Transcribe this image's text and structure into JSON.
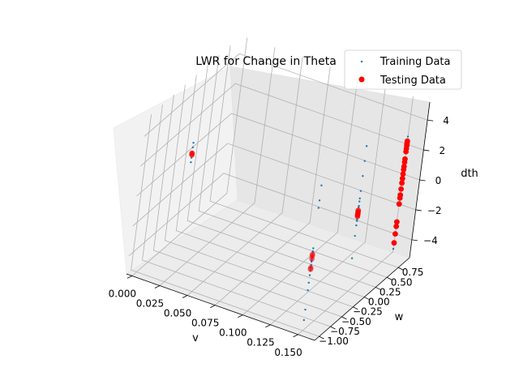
{
  "chart_data": {
    "type": "scatter",
    "projection": "3d",
    "title": "LWR for Change in Theta",
    "xlabel": "v",
    "ylabel": "w",
    "zlabel": "dth",
    "xlim": [
      -0.005,
      0.165
    ],
    "ylim": [
      -1.1,
      1.0
    ],
    "zlim": [
      -5.2,
      5.2
    ],
    "x_ticks": [
      0.0,
      0.025,
      0.05,
      0.075,
      0.1,
      0.125,
      0.15
    ],
    "x_tick_labels": [
      "0.000",
      "0.025",
      "0.050",
      "0.075",
      "0.100",
      "0.125",
      "0.150"
    ],
    "y_ticks": [
      -1.0,
      -0.75,
      -0.5,
      -0.25,
      0.0,
      0.25,
      0.5,
      0.75
    ],
    "y_tick_labels": [
      "−1.00",
      "−0.75",
      "−0.50",
      "−0.25",
      "0.00",
      "0.25",
      "0.50",
      "0.75"
    ],
    "z_ticks": [
      -4,
      -2,
      0,
      2,
      4
    ],
    "z_tick_labels": [
      "−4",
      "−2",
      "0",
      "2",
      "4"
    ],
    "grid": true,
    "legend": {
      "placement": "top-right",
      "entries": [
        {
          "label": "Training Data",
          "color": "#1f77b4",
          "marker": "small-dot"
        },
        {
          "label": "Testing Data",
          "color": "#ff0000",
          "marker": "circle"
        }
      ]
    },
    "series": [
      {
        "name": "Training Data",
        "color": "#1f77b4",
        "points": [
          [
            0.0,
            0.0,
            0.2
          ],
          [
            0.0,
            0.0,
            0.5
          ],
          [
            0.0,
            0.0,
            -0.2
          ],
          [
            0.0,
            0.0,
            0.8
          ],
          [
            0.0,
            0.0,
            -0.5
          ],
          [
            0.15,
            -1.0,
            3.5
          ],
          [
            0.15,
            -1.0,
            3.0
          ],
          [
            0.15,
            -1.0,
            4.5
          ],
          [
            0.15,
            -1.0,
            -4.5
          ],
          [
            0.15,
            -1.0,
            -3.8
          ],
          [
            0.15,
            -1.0,
            -2.0
          ],
          [
            0.15,
            -1.0,
            -1.5
          ],
          [
            0.15,
            -1.0,
            -2.5
          ],
          [
            0.15,
            -1.0,
            -0.5
          ],
          [
            0.15,
            -1.0,
            -0.2
          ],
          [
            0.15,
            -1.0,
            0.0
          ],
          [
            0.15,
            -1.0,
            -0.8
          ],
          [
            0.15,
            -1.0,
            -1.2
          ],
          [
            0.15,
            -1.0,
            0.3
          ],
          [
            0.15,
            -1.0,
            -0.9
          ],
          [
            0.15,
            -1.0,
            -0.4
          ],
          [
            0.15,
            -1.0,
            0.1
          ],
          [
            0.15,
            -1.0,
            -0.6
          ],
          [
            0.15,
            -1.0,
            -1.0
          ],
          [
            0.15,
            -1.0,
            -0.3
          ],
          [
            0.15,
            0.0,
            2.5
          ],
          [
            0.15,
            0.0,
            1.5
          ],
          [
            0.15,
            0.0,
            0.5
          ],
          [
            0.15,
            0.0,
            0.2
          ],
          [
            0.15,
            0.0,
            -0.2
          ],
          [
            0.15,
            0.0,
            -0.5
          ],
          [
            0.15,
            0.0,
            0.0
          ],
          [
            0.15,
            0.0,
            0.8
          ],
          [
            0.15,
            0.0,
            -0.8
          ],
          [
            0.15,
            0.0,
            1.0
          ],
          [
            0.15,
            0.0,
            -1.5
          ],
          [
            0.15,
            0.0,
            -3.0
          ],
          [
            0.15,
            0.0,
            4.5
          ],
          [
            0.15,
            0.0,
            3.5
          ],
          [
            0.15,
            0.0,
            0.4
          ],
          [
            0.15,
            0.0,
            -0.4
          ],
          [
            0.15,
            1.0,
            2.0
          ],
          [
            0.15,
            1.0,
            1.5
          ],
          [
            0.15,
            1.0,
            1.0
          ],
          [
            0.15,
            1.0,
            0.5
          ],
          [
            0.15,
            1.0,
            0.0
          ],
          [
            0.15,
            1.0,
            -0.5
          ],
          [
            0.15,
            1.0,
            -1.0
          ],
          [
            0.15,
            1.0,
            2.5
          ],
          [
            0.15,
            1.0,
            -1.5
          ],
          [
            0.15,
            1.0,
            0.2
          ],
          [
            0.15,
            1.0,
            -5.0
          ]
        ]
      },
      {
        "name": "Testing Data",
        "color": "#ff0000",
        "points": [
          [
            0.0,
            0.0,
            0.0
          ],
          [
            0.0,
            0.0,
            0.1
          ],
          [
            0.15,
            -1.0,
            -0.2
          ],
          [
            0.15,
            -1.0,
            -0.4
          ],
          [
            0.15,
            -1.0,
            -0.1
          ],
          [
            0.15,
            -1.0,
            -1.0
          ],
          [
            0.15,
            -1.0,
            -1.1
          ],
          [
            0.15,
            0.0,
            0.0
          ],
          [
            0.15,
            0.0,
            0.1
          ],
          [
            0.15,
            0.0,
            -0.1
          ],
          [
            0.15,
            0.0,
            0.2
          ],
          [
            0.15,
            0.0,
            -0.2
          ],
          [
            0.15,
            1.0,
            2.2
          ],
          [
            0.15,
            1.0,
            2.1
          ],
          [
            0.15,
            1.0,
            2.0
          ],
          [
            0.15,
            1.0,
            1.9
          ],
          [
            0.15,
            1.0,
            1.7
          ],
          [
            0.15,
            1.0,
            1.5
          ],
          [
            0.15,
            1.0,
            1.0
          ],
          [
            0.15,
            1.0,
            0.8
          ],
          [
            0.15,
            1.0,
            0.5
          ],
          [
            0.15,
            1.0,
            0.3
          ],
          [
            0.15,
            1.0,
            0.0
          ],
          [
            0.15,
            1.0,
            -0.3
          ],
          [
            0.15,
            1.0,
            -0.6
          ],
          [
            0.15,
            1.0,
            -1.0
          ],
          [
            0.15,
            1.0,
            -1.4
          ],
          [
            0.15,
            1.0,
            -1.6
          ],
          [
            0.15,
            1.0,
            -2.0
          ],
          [
            0.15,
            1.0,
            -3.5
          ],
          [
            0.15,
            1.0,
            -4.0
          ],
          [
            0.15,
            1.0,
            -4.6
          ],
          [
            0.15,
            1.0,
            -3.2
          ]
        ]
      }
    ]
  }
}
